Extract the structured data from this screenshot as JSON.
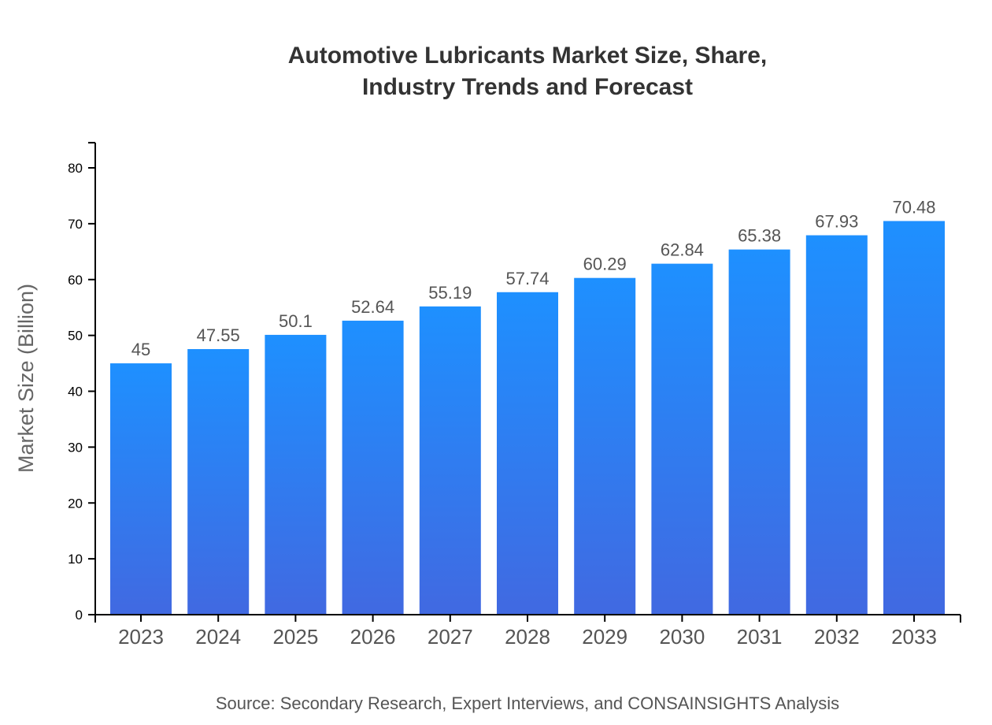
{
  "chart_data": {
    "type": "bar",
    "title_lines": [
      "Automotive Lubricants Market Size, Share,",
      "Industry Trends and Forecast"
    ],
    "xlabel": "",
    "ylabel": "Market Size (Billion)",
    "categories": [
      "2023",
      "2024",
      "2025",
      "2026",
      "2027",
      "2028",
      "2029",
      "2030",
      "2031",
      "2032",
      "2033"
    ],
    "values": [
      45,
      47.55,
      50.1,
      52.64,
      55.19,
      57.74,
      60.29,
      62.84,
      65.38,
      67.93,
      70.48
    ],
    "data_labels": [
      "45",
      "47.55",
      "50.1",
      "52.64",
      "55.19",
      "57.74",
      "60.29",
      "62.84",
      "65.38",
      "67.93",
      "70.48"
    ],
    "yticks": [
      "0",
      "10",
      "20",
      "30",
      "40",
      "50",
      "60",
      "70",
      "80"
    ],
    "ylim": [
      0,
      84.5
    ],
    "grid": false,
    "legend": "none",
    "colors": {
      "bar_top": "#1e90ff",
      "bar_bottom": "#4169e1"
    },
    "source": "Source: Secondary Research, Expert Interviews, and CONSAINSIGHTS Analysis"
  }
}
